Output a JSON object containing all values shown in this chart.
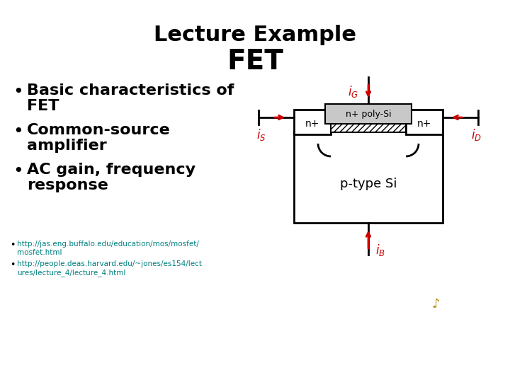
{
  "title_line1": "Lecture Example",
  "title_line2": "FET",
  "bullet1_line1": "Basic characteristics of",
  "bullet1_line2": "FET",
  "bullet2_line1": "Common-source",
  "bullet2_line2": "amplifier",
  "bullet3_line1": "AC gain, frequency",
  "bullet3_line2": "response",
  "link1": "http://jas.eng.buffalo.edu/education/mos/mosfet/\nmosfet.html",
  "link2": "http://people.deas.harvard.edu/~jones/es154/lect\nures/lecture_4/lecture_4.html",
  "bg_color": "#ffffff",
  "title_color": "#000000",
  "bullet_color": "#000000",
  "arrow_color": "#cc0000",
  "diagram_line_color": "#000000",
  "gate_fill": "#c8c8c8",
  "body_fill": "#ffffff",
  "label_color": "#000000",
  "link_color": "#008080",
  "title_fs": 22,
  "title2_fs": 28,
  "bullet_fs": 16,
  "label_fs": 11,
  "link_fs": 7.5
}
